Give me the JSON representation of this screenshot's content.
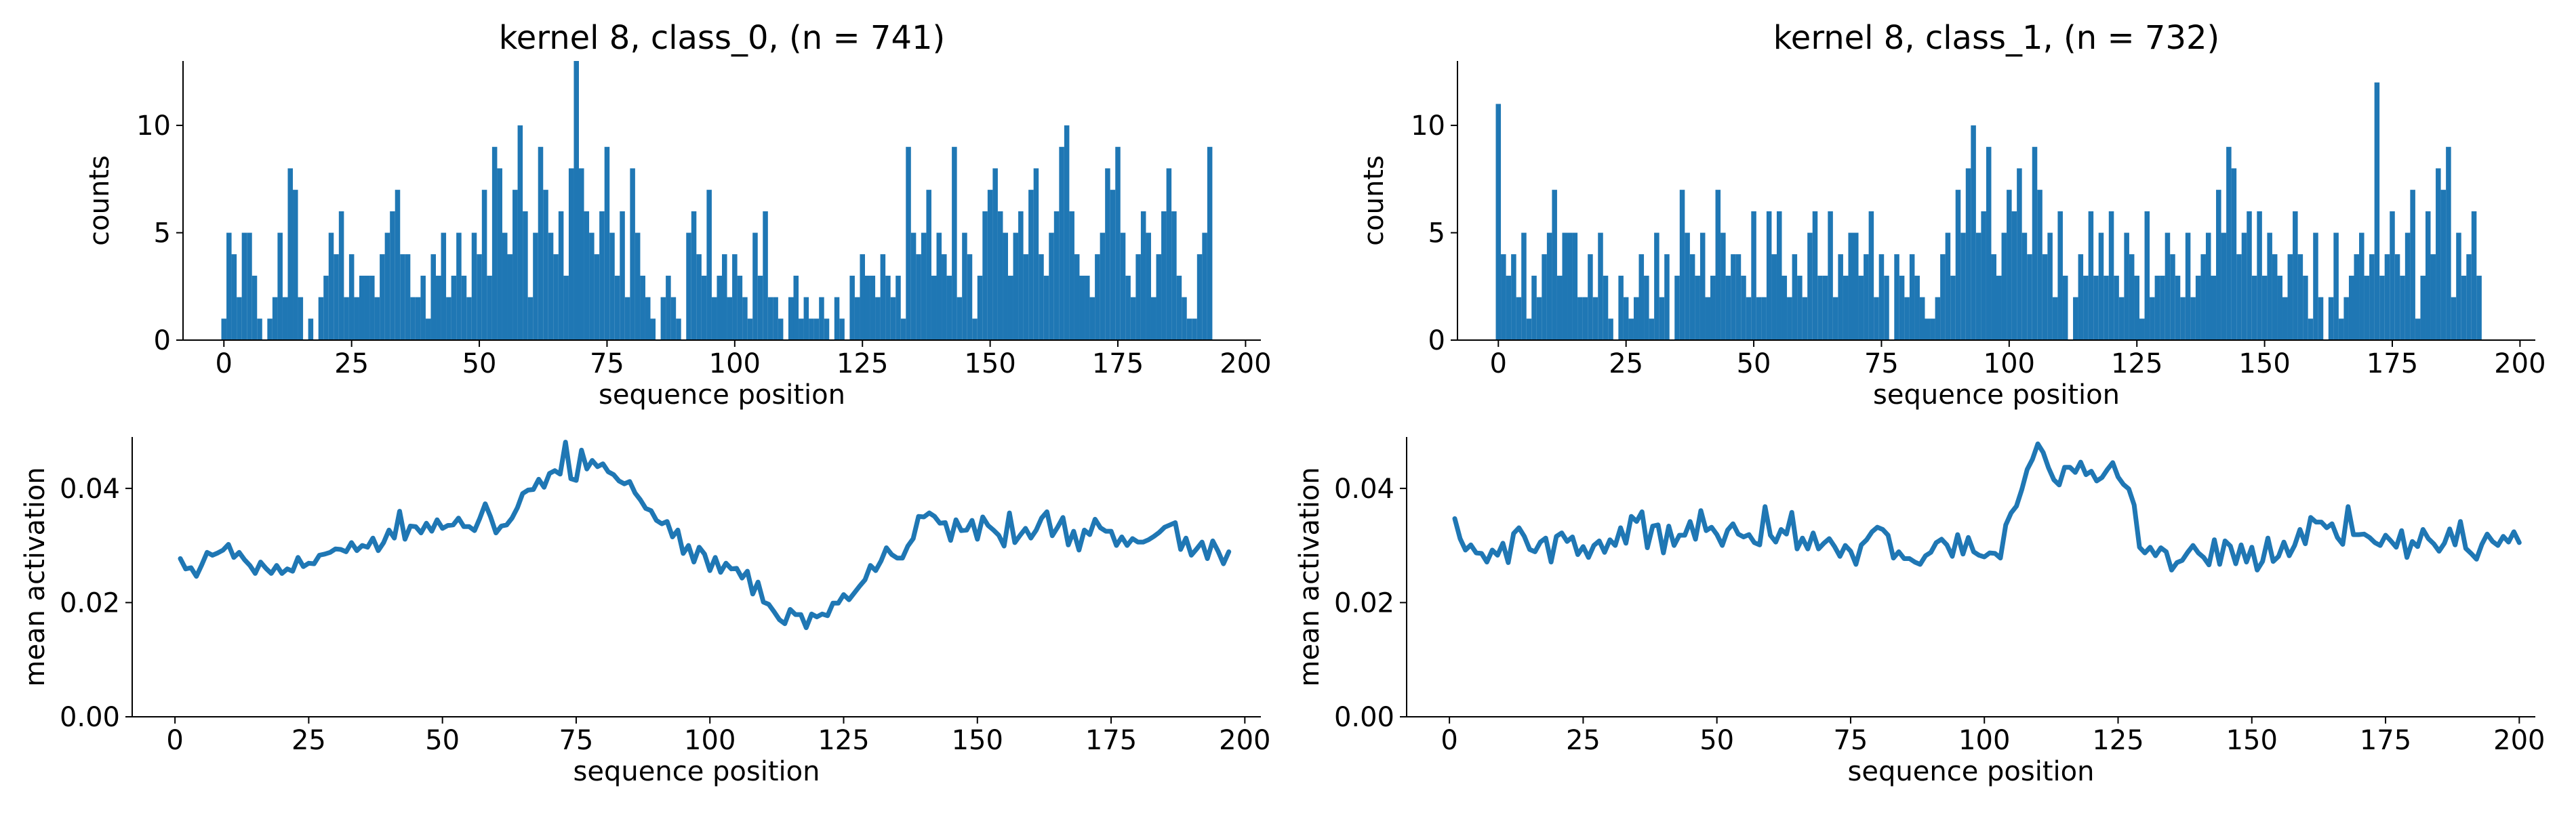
{
  "colors": {
    "series": "#1f77b4",
    "axis": "#000000"
  },
  "chart_data": [
    {
      "type": "bar",
      "panel": "top-left",
      "title": "kernel 8, class_0, (n = 741)",
      "xlabel": "sequence position",
      "ylabel": "counts",
      "xlim": [
        -8,
        203
      ],
      "ylim": [
        0,
        13
      ],
      "xticks": [
        "0",
        "25",
        "50",
        "75",
        "100",
        "125",
        "150",
        "175",
        "200"
      ],
      "yticks": [
        "0",
        "5",
        "10"
      ],
      "grid": false,
      "series": [
        {
          "x_start": 0,
          "values": [
            1,
            5,
            4,
            2,
            5,
            5,
            3,
            1,
            0,
            1,
            2,
            5,
            2,
            8,
            7,
            2,
            0,
            1,
            0,
            2,
            3,
            5,
            4,
            6,
            2,
            4,
            2,
            3,
            3,
            3,
            2,
            4,
            5,
            6,
            7,
            4,
            4,
            2,
            2,
            3,
            1,
            4,
            3,
            5,
            2,
            3,
            5,
            3,
            2,
            5,
            4,
            7,
            3,
            9,
            8,
            5,
            4,
            7,
            10,
            6,
            2,
            5,
            9,
            7,
            5,
            4,
            6,
            3,
            8,
            13,
            8,
            6,
            5,
            4,
            6,
            9,
            5,
            3,
            6,
            2,
            8,
            5,
            3,
            2,
            1,
            0,
            2,
            3,
            2,
            1,
            0,
            5,
            6,
            4,
            3,
            7,
            2,
            3,
            4,
            2,
            4,
            3,
            2,
            1,
            5,
            3,
            6,
            2,
            2,
            1,
            0,
            2,
            3,
            1,
            2,
            1,
            1,
            2,
            1,
            0,
            2,
            1,
            0,
            3,
            2,
            4,
            3,
            3,
            2,
            4,
            3,
            2,
            3,
            1,
            9,
            5,
            4,
            5,
            7,
            3,
            5,
            4,
            3,
            9,
            2,
            5,
            4,
            1,
            3,
            6,
            7,
            8,
            6,
            5,
            3,
            5,
            6,
            4,
            7,
            8,
            4,
            3,
            5,
            6,
            9,
            10,
            6,
            4,
            3,
            3,
            2,
            4,
            5,
            8,
            7,
            9,
            5,
            3,
            2,
            4,
            6,
            5,
            2,
            4,
            6,
            8,
            6,
            3,
            2,
            1,
            1,
            4,
            5,
            9
          ]
        }
      ]
    },
    {
      "type": "bar",
      "panel": "top-right",
      "title": "kernel 8, class_1, (n = 732)",
      "xlabel": "sequence position",
      "ylabel": "counts",
      "xlim": [
        -8,
        203
      ],
      "ylim": [
        0,
        13
      ],
      "xticks": [
        "0",
        "25",
        "50",
        "75",
        "100",
        "125",
        "150",
        "175",
        "200"
      ],
      "yticks": [
        "0",
        "5",
        "10"
      ],
      "grid": false,
      "series": [
        {
          "x_start": 0,
          "values": [
            11,
            4,
            3,
            4,
            2,
            5,
            1,
            3,
            2,
            4,
            5,
            7,
            3,
            5,
            5,
            5,
            2,
            2,
            4,
            2,
            5,
            3,
            1,
            0,
            3,
            2,
            1,
            2,
            4,
            3,
            1,
            5,
            2,
            4,
            0,
            3,
            7,
            5,
            4,
            3,
            5,
            2,
            3,
            7,
            5,
            3,
            4,
            4,
            3,
            2,
            6,
            2,
            2,
            6,
            4,
            6,
            3,
            2,
            4,
            3,
            2,
            5,
            6,
            3,
            3,
            6,
            2,
            4,
            3,
            5,
            5,
            3,
            4,
            6,
            2,
            4,
            3,
            0,
            4,
            3,
            2,
            4,
            3,
            2,
            1,
            1,
            2,
            4,
            5,
            3,
            7,
            5,
            8,
            10,
            5,
            6,
            9,
            4,
            3,
            5,
            7,
            6,
            8,
            5,
            4,
            9,
            7,
            4,
            5,
            2,
            6,
            3,
            0,
            2,
            4,
            3,
            6,
            3,
            5,
            3,
            6,
            3,
            2,
            5,
            4,
            3,
            1,
            6,
            2,
            3,
            3,
            5,
            4,
            3,
            2,
            5,
            2,
            3,
            4,
            5,
            3,
            7,
            5,
            9,
            8,
            4,
            5,
            6,
            3,
            6,
            3,
            5,
            4,
            3,
            2,
            4,
            6,
            4,
            3,
            1,
            5,
            2,
            0,
            2,
            5,
            1,
            2,
            3,
            4,
            5,
            3,
            4,
            12,
            3,
            4,
            6,
            4,
            3,
            5,
            7,
            1,
            3,
            6,
            4,
            8,
            7,
            9,
            2,
            5,
            3,
            4,
            6,
            3
          ]
        }
      ]
    },
    {
      "type": "line",
      "panel": "bottom-left",
      "xlabel": "sequence position",
      "ylabel": "mean activation",
      "xlim": [
        -8,
        203
      ],
      "ylim": [
        0,
        0.049
      ],
      "xticks": [
        "0",
        "25",
        "50",
        "75",
        "100",
        "125",
        "150",
        "175",
        "200"
      ],
      "yticks": [
        "0.00",
        "0.02",
        "0.04"
      ],
      "grid": false,
      "series": [
        {
          "x_start": 1,
          "values": [
            0.0277,
            0.0259,
            0.0261,
            0.0246,
            0.0266,
            0.0288,
            0.0283,
            0.0287,
            0.0292,
            0.0302,
            0.0279,
            0.0288,
            0.0275,
            0.0265,
            0.0251,
            0.0271,
            0.026,
            0.0251,
            0.0265,
            0.0251,
            0.0259,
            0.0255,
            0.0279,
            0.0263,
            0.0269,
            0.0268,
            0.0283,
            0.0285,
            0.0288,
            0.0294,
            0.0293,
            0.0289,
            0.0305,
            0.0291,
            0.03,
            0.0297,
            0.0313,
            0.0291,
            0.0305,
            0.0327,
            0.0313,
            0.036,
            0.0311,
            0.0334,
            0.0333,
            0.0322,
            0.0339,
            0.0325,
            0.0345,
            0.033,
            0.0335,
            0.0336,
            0.0348,
            0.0333,
            0.0333,
            0.0326,
            0.0348,
            0.0373,
            0.035,
            0.0322,
            0.0334,
            0.0336,
            0.0348,
            0.0366,
            0.0391,
            0.0397,
            0.0398,
            0.0416,
            0.0402,
            0.0426,
            0.0431,
            0.0425,
            0.0481,
            0.0417,
            0.0414,
            0.0467,
            0.0434,
            0.0449,
            0.0438,
            0.0443,
            0.0429,
            0.0424,
            0.0413,
            0.0408,
            0.0412,
            0.0392,
            0.038,
            0.0365,
            0.0361,
            0.0344,
            0.0338,
            0.0342,
            0.0315,
            0.0327,
            0.0286,
            0.03,
            0.0271,
            0.0297,
            0.0285,
            0.0256,
            0.0279,
            0.0253,
            0.0269,
            0.0259,
            0.026,
            0.0243,
            0.0255,
            0.0215,
            0.0236,
            0.0201,
            0.0197,
            0.0184,
            0.017,
            0.0163,
            0.0188,
            0.0179,
            0.0179,
            0.0156,
            0.018,
            0.0175,
            0.018,
            0.0177,
            0.0199,
            0.0199,
            0.0214,
            0.0205,
            0.0217,
            0.0229,
            0.024,
            0.0265,
            0.0256,
            0.0273,
            0.0296,
            0.0284,
            0.0278,
            0.0278,
            0.0299,
            0.0312,
            0.0351,
            0.035,
            0.0357,
            0.0351,
            0.0339,
            0.034,
            0.0309,
            0.0345,
            0.0326,
            0.0327,
            0.0344,
            0.0311,
            0.035,
            0.0335,
            0.0327,
            0.0318,
            0.0299,
            0.0357,
            0.0305,
            0.0318,
            0.033,
            0.0313,
            0.0327,
            0.0348,
            0.0359,
            0.0317,
            0.0332,
            0.0349,
            0.0301,
            0.0325,
            0.0292,
            0.0327,
            0.0319,
            0.0346,
            0.0331,
            0.0325,
            0.0325,
            0.03,
            0.0315,
            0.03,
            0.0312,
            0.0306,
            0.0306,
            0.031,
            0.0316,
            0.0323,
            0.0332,
            0.0336,
            0.034,
            0.0293,
            0.0313,
            0.0283,
            0.0294,
            0.0306,
            0.0277,
            0.0308,
            0.029,
            0.0268,
            0.0289
          ]
        }
      ]
    },
    {
      "type": "line",
      "panel": "bottom-right",
      "xlabel": "sequence position",
      "ylabel": "mean activation",
      "xlim": [
        -8,
        203
      ],
      "ylim": [
        0,
        0.049
      ],
      "xticks": [
        "0",
        "25",
        "50",
        "75",
        "100",
        "125",
        "150",
        "175",
        "200"
      ],
      "yticks": [
        "0.00",
        "0.02",
        "0.04"
      ],
      "grid": false,
      "series": [
        {
          "x_start": 1,
          "values": [
            0.0347,
            0.0312,
            0.0292,
            0.0301,
            0.0287,
            0.0286,
            0.0271,
            0.0292,
            0.0283,
            0.0304,
            0.027,
            0.0321,
            0.0331,
            0.0316,
            0.0293,
            0.0289,
            0.0306,
            0.0313,
            0.0271,
            0.0316,
            0.0322,
            0.0307,
            0.0315,
            0.0284,
            0.0298,
            0.0279,
            0.03,
            0.0308,
            0.0288,
            0.031,
            0.03,
            0.0331,
            0.0304,
            0.0351,
            0.0342,
            0.0359,
            0.0296,
            0.0334,
            0.0336,
            0.0287,
            0.0334,
            0.03,
            0.0318,
            0.0318,
            0.0342,
            0.0311,
            0.0361,
            0.0326,
            0.0332,
            0.0319,
            0.03,
            0.0327,
            0.0338,
            0.032,
            0.0315,
            0.0319,
            0.0305,
            0.0301,
            0.0368,
            0.0318,
            0.0306,
            0.0328,
            0.032,
            0.0358,
            0.0294,
            0.0313,
            0.0294,
            0.0322,
            0.0294,
            0.0304,
            0.0312,
            0.0298,
            0.0281,
            0.03,
            0.029,
            0.0267,
            0.0301,
            0.031,
            0.0324,
            0.0332,
            0.0328,
            0.0318,
            0.0278,
            0.0289,
            0.0277,
            0.0277,
            0.0271,
            0.0267,
            0.0282,
            0.0288,
            0.0305,
            0.0311,
            0.0301,
            0.0281,
            0.0319,
            0.0285,
            0.0314,
            0.0289,
            0.0283,
            0.028,
            0.0287,
            0.0286,
            0.0278,
            0.0336,
            0.0357,
            0.0369,
            0.0398,
            0.0433,
            0.0451,
            0.0478,
            0.0463,
            0.0436,
            0.0415,
            0.0406,
            0.0437,
            0.0437,
            0.0428,
            0.0446,
            0.0424,
            0.043,
            0.0413,
            0.0419,
            0.0433,
            0.0445,
            0.042,
            0.0407,
            0.0399,
            0.0371,
            0.0297,
            0.0287,
            0.0297,
            0.0282,
            0.0296,
            0.0289,
            0.0257,
            0.027,
            0.0274,
            0.0288,
            0.03,
            0.0287,
            0.0279,
            0.0266,
            0.031,
            0.0267,
            0.0308,
            0.0299,
            0.0268,
            0.0301,
            0.0271,
            0.0297,
            0.0257,
            0.0272,
            0.0313,
            0.0272,
            0.0281,
            0.0306,
            0.0282,
            0.03,
            0.0328,
            0.0303,
            0.0349,
            0.0341,
            0.0341,
            0.0331,
            0.0338,
            0.0314,
            0.0302,
            0.0368,
            0.0319,
            0.0319,
            0.032,
            0.0314,
            0.0305,
            0.03,
            0.0318,
            0.0308,
            0.0297,
            0.0326,
            0.0279,
            0.0307,
            0.0298,
            0.0328,
            0.0312,
            0.0303,
            0.029,
            0.0304,
            0.0329,
            0.0301,
            0.0342,
            0.0295,
            0.0286,
            0.0276,
            0.0302,
            0.032,
            0.0307,
            0.03,
            0.0316,
            0.0306,
            0.0324,
            0.0305
          ]
        }
      ]
    }
  ]
}
